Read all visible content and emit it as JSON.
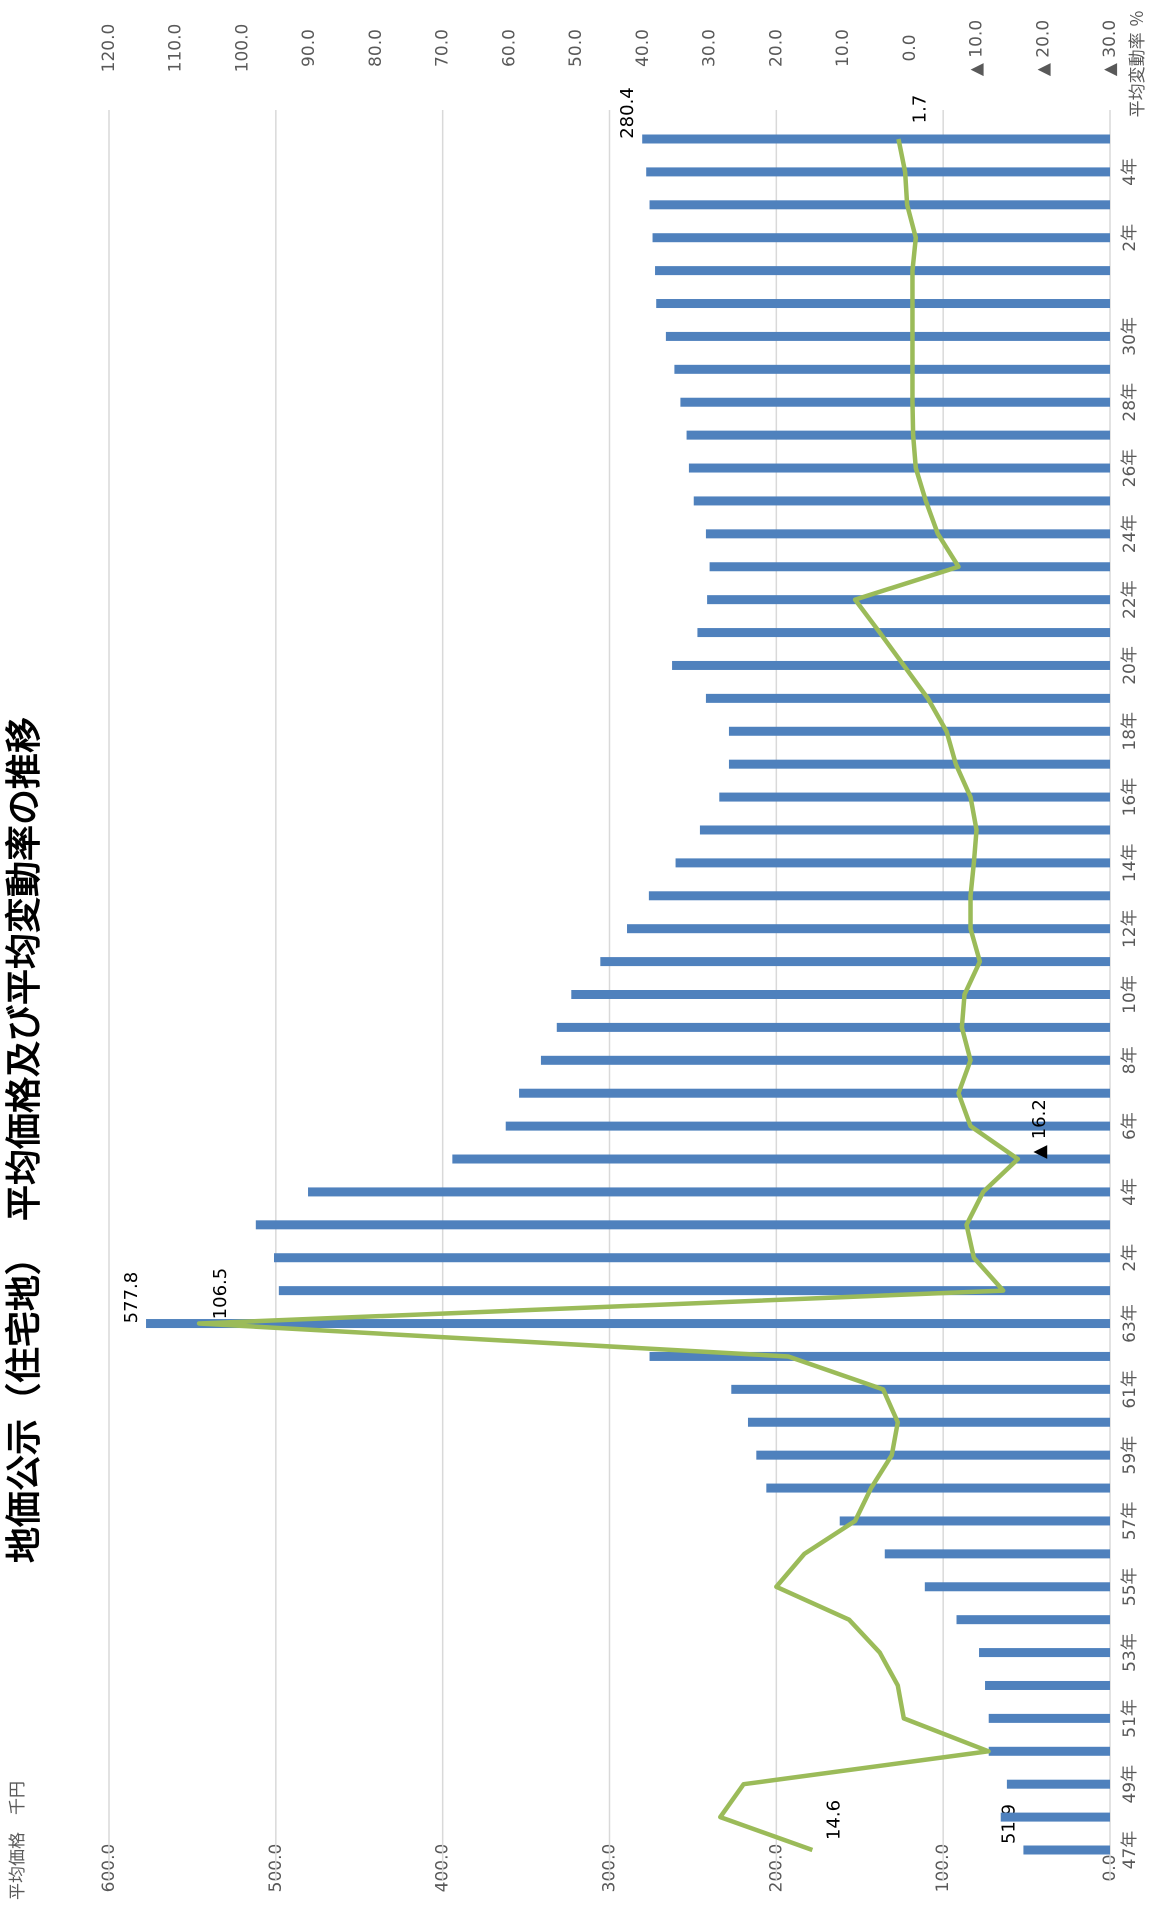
{
  "chart_data": {
    "type": "bar_line",
    "title": "地価公示（住宅地）　平均価格及び平均変動率の推移",
    "y_label": "平均価格　千円",
    "y2_label": "平均変動率 ％",
    "categories": [
      "47年",
      null,
      "49年",
      null,
      "51年",
      null,
      "53年",
      null,
      "55年",
      null,
      "57年",
      null,
      "59年",
      null,
      "61年",
      null,
      "63年",
      null,
      "2年",
      null,
      "4年",
      null,
      "6年",
      null,
      "8年",
      null,
      "10年",
      null,
      "12年",
      null,
      "14年",
      null,
      "16年",
      null,
      "18年",
      null,
      "20年",
      null,
      "22年",
      null,
      "24年",
      null,
      "26年",
      null,
      "28年",
      null,
      "30年",
      null,
      null,
      "2年",
      null,
      "4年",
      null
    ],
    "series": [
      {
        "name": "平均価格",
        "type": "bar",
        "axis": "y",
        "color": "#4f81bd",
        "values": [
          51.9,
          65.5,
          61.8,
          72.7,
          72.7,
          74.9,
          78.5,
          92,
          111,
          135,
          162,
          206,
          212,
          217,
          227,
          276,
          577.8,
          498.2,
          501.1,
          512.0,
          480.7,
          394.2,
          362.2,
          354.2,
          341.1,
          331.6,
          322.9,
          305.5,
          289.5,
          276.4,
          260.4,
          245.8,
          234.2,
          228.4,
          228.4,
          242.2,
          262.5,
          247.3,
          241.5,
          240.0,
          242.2,
          249.5,
          252.4,
          253.8,
          257.5,
          261.1,
          266.2,
          272.0,
          272.7,
          274.2,
          276.0,
          278.0,
          280.4
        ],
        "value_labels": [
          "51.9",
          null,
          null,
          null,
          null,
          null,
          null,
          null,
          null,
          null,
          null,
          null,
          null,
          null,
          null,
          null,
          "577.8",
          null,
          null,
          null,
          null,
          null,
          null,
          null,
          null,
          null,
          null,
          null,
          null,
          null,
          null,
          null,
          null,
          null,
          null,
          null,
          null,
          null,
          null,
          null,
          null,
          null,
          null,
          null,
          null,
          null,
          null,
          null,
          null,
          null,
          null,
          null,
          "280.4"
        ]
      },
      {
        "name": "平均変動率",
        "type": "line",
        "axis": "y2",
        "color": "#9bbb59",
        "values": [
          14.6,
          28.4,
          24.9,
          -11.8,
          0.9,
          1.8,
          4.5,
          9.1,
          20.0,
          15.8,
          8.2,
          5.8,
          2.7,
          1.8,
          4.0,
          18.2,
          106.5,
          -14.0,
          -9.6,
          -8.5,
          -11.0,
          -16.2,
          -9.1,
          -7.3,
          -9.1,
          -7.8,
          -8.2,
          -10.5,
          -9.1,
          -9.1,
          -9.6,
          -10.0,
          -9.1,
          -6.9,
          -5.5,
          -2.7,
          0.9,
          4.5,
          8.2,
          -7.3,
          -4.2,
          -2.4,
          -0.9,
          -0.5,
          -0.4,
          -0.4,
          -0.4,
          -0.4,
          -0.4,
          -0.9,
          0.4,
          0.7,
          1.7
        ],
        "value_labels": [
          "14.6",
          null,
          null,
          null,
          null,
          null,
          null,
          null,
          null,
          null,
          null,
          null,
          null,
          null,
          null,
          null,
          "106.5",
          null,
          null,
          null,
          null,
          "▲ 16.2",
          null,
          null,
          null,
          null,
          null,
          null,
          null,
          null,
          null,
          null,
          null,
          null,
          null,
          null,
          null,
          null,
          null,
          null,
          null,
          null,
          null,
          null,
          null,
          null,
          null,
          null,
          null,
          null,
          null,
          null,
          "1.7"
        ]
      }
    ],
    "ylim": [
      0,
      600
    ],
    "yticks": [
      {
        "value": 0,
        "label": "0.0"
      },
      {
        "value": 100,
        "label": "100.0"
      },
      {
        "value": 200,
        "label": "200.0"
      },
      {
        "value": 300,
        "label": "300.0"
      },
      {
        "value": 400,
        "label": "400.0"
      },
      {
        "value": 500,
        "label": "500.0"
      },
      {
        "value": 600,
        "label": "600.0"
      }
    ],
    "y2lim": [
      -30,
      120
    ],
    "y2ticks": [
      {
        "value": -30,
        "label": "▲ 30.0"
      },
      {
        "value": -20,
        "label": "▲ 20.0"
      },
      {
        "value": -10,
        "label": "▲ 10.0"
      },
      {
        "value": 0,
        "label": "0.0"
      },
      {
        "value": 10,
        "label": "10.0"
      },
      {
        "value": 20,
        "label": "20.0"
      },
      {
        "value": 30,
        "label": "30.0"
      },
      {
        "value": 40,
        "label": "40.0"
      },
      {
        "value": 50,
        "label": "50.0"
      },
      {
        "value": 60,
        "label": "60.0"
      },
      {
        "value": 70,
        "label": "70.0"
      },
      {
        "value": 80,
        "label": "80.0"
      },
      {
        "value": 90,
        "label": "90.0"
      },
      {
        "value": 100,
        "label": "100.0"
      },
      {
        "value": 110,
        "label": "110.0"
      },
      {
        "value": 120,
        "label": "120.0"
      }
    ],
    "grid": true,
    "rotation": -90
  }
}
